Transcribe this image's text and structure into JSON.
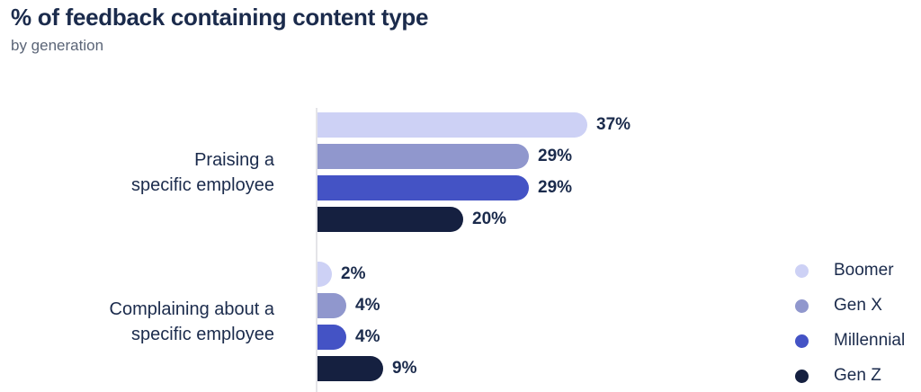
{
  "header": {
    "title": "% of feedback containing content type",
    "subtitle": "by generation"
  },
  "chart_data": {
    "type": "bar",
    "orientation": "horizontal",
    "title": "% of feedback containing content type",
    "subtitle": "by generation",
    "categories": [
      "Praising a specific employee",
      "Complaining about a specific employee"
    ],
    "category_label_lines": [
      [
        "Praising a",
        "specific employee"
      ],
      [
        "Complaining about a",
        "specific employee"
      ]
    ],
    "series": [
      {
        "name": "Boomer",
        "color": "#cdd1f5",
        "values": [
          37,
          2
        ]
      },
      {
        "name": "Gen X",
        "color": "#9097cd",
        "values": [
          29,
          4
        ]
      },
      {
        "name": "Millennial",
        "color": "#4453c5",
        "values": [
          29,
          4
        ]
      },
      {
        "name": "Gen Z",
        "color": "#152040",
        "values": [
          20,
          9
        ]
      }
    ],
    "value_suffix": "%",
    "value_labels": [
      [
        "37%",
        "29%",
        "29%",
        "20%"
      ],
      [
        "2%",
        "4%",
        "4%",
        "9%"
      ]
    ],
    "xlim": [
      0,
      37
    ],
    "grid": false,
    "legend": {
      "position": "right",
      "entries": [
        "Boomer",
        "Gen X",
        "Millennial",
        "Gen Z"
      ]
    }
  },
  "colors": {
    "background": "#ffffff",
    "text_primary": "#1b2b4c",
    "text_secondary": "#5b6577",
    "axis_line": "#e4e4e8"
  }
}
